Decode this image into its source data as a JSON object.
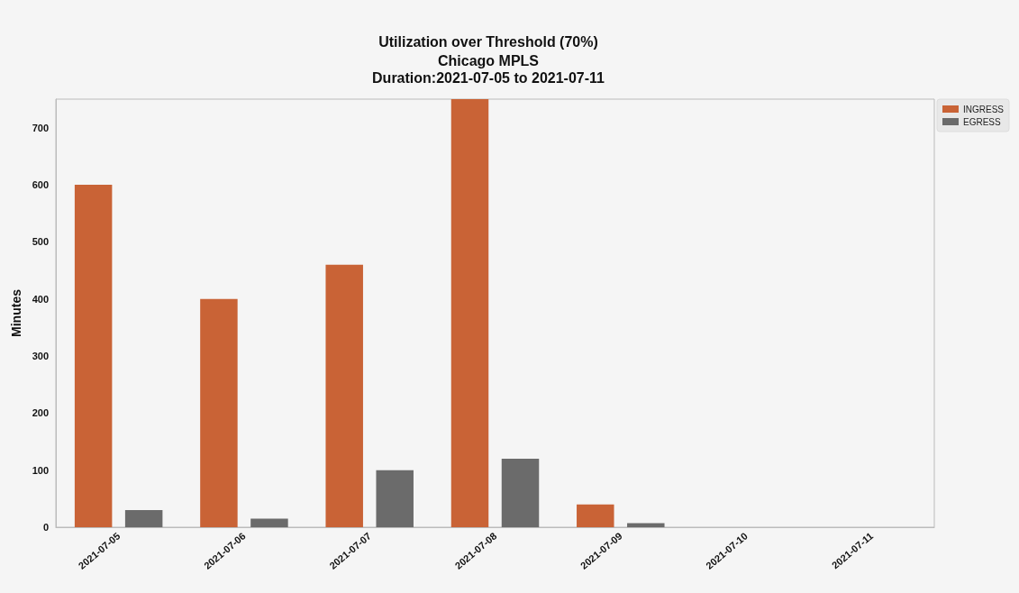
{
  "chart_data": {
    "type": "bar",
    "title": "Utilization over Threshold (70%)",
    "subtitle": "Chicago MPLS\nDuration:2021-07-05 to 2021-07-11",
    "ylabel": "Minutes",
    "categories": [
      "2021-07-05",
      "2021-07-06",
      "2021-07-07",
      "2021-07-08",
      "2021-07-09",
      "2021-07-10",
      "2021-07-11"
    ],
    "series": [
      {
        "name": "INGRESS",
        "color": "#c96336",
        "values": [
          600,
          400,
          460,
          750,
          40,
          0,
          0
        ]
      },
      {
        "name": "EGRESS",
        "color": "#6b6b6b",
        "values": [
          30,
          15,
          100,
          120,
          7,
          0,
          0
        ]
      }
    ],
    "ylim": [
      0,
      750
    ],
    "yticks": [
      0,
      100,
      200,
      300,
      400,
      500,
      600,
      700
    ],
    "grid": false,
    "legend": "top right"
  }
}
